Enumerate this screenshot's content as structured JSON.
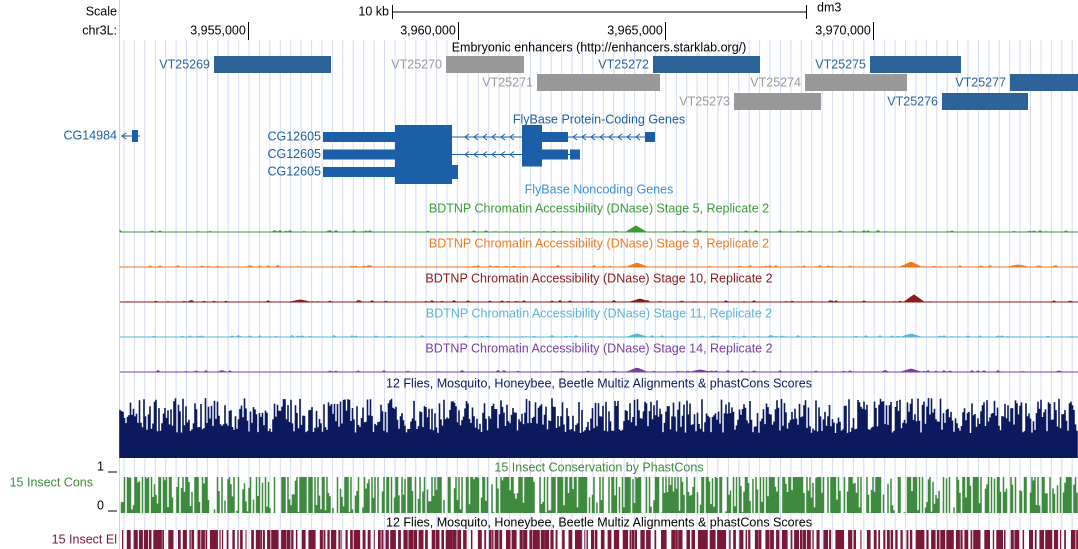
{
  "header": {
    "scale": "Scale",
    "scale_bar": "10 kb",
    "assembly": "dm3",
    "chrom": "chr3L:",
    "positions": [
      "3,955,000",
      "3,960,000",
      "3,965,000",
      "3,970,000"
    ]
  },
  "enhancers": {
    "title": "Embryonic enhancers (http://enhancers.starklab.org/)",
    "items": [
      {
        "name": "VT25269",
        "color": "#2e6399"
      },
      {
        "name": "VT25270",
        "color": "#999999"
      },
      {
        "name": "VT25272",
        "color": "#2e6399"
      },
      {
        "name": "VT25275",
        "color": "#2e6399"
      },
      {
        "name": "VT25271",
        "color": "#999999"
      },
      {
        "name": "VT25274",
        "color": "#999999"
      },
      {
        "name": "VT25277",
        "color": "#2e6399"
      },
      {
        "name": "VT25273",
        "color": "#999999"
      },
      {
        "name": "VT25276",
        "color": "#2e6399"
      }
    ]
  },
  "genes": {
    "title": "FlyBase Protein-Coding Genes",
    "items": [
      "CG14984",
      "CG12605",
      "CG12605",
      "CG12605"
    ]
  },
  "noncoding": {
    "title": "FlyBase Noncoding Genes"
  },
  "dnase": [
    {
      "title": "BDTNP Chromatin Accessibility (DNase) Stage 5, Replicate 2",
      "color": "#3a9b3a"
    },
    {
      "title": "BDTNP Chromatin Accessibility (DNase) Stage 9, Replicate 2",
      "color": "#f07a20"
    },
    {
      "title": "BDTNP Chromatin Accessibility (DNase) Stage 10, Replicate 2",
      "color": "#8b1a1a"
    },
    {
      "title": "BDTNP Chromatin Accessibility (DNase) Stage 11, Replicate 2",
      "color": "#5ab4d6"
    },
    {
      "title": "BDTNP Chromatin Accessibility (DNase) Stage 14, Replicate 2",
      "color": "#7a3fa0"
    }
  ],
  "multiz": {
    "title": "12 Flies, Mosquito, Honeybee, Beetle Multiz Alignments & phastCons Scores"
  },
  "phastcons": {
    "title": "15 Insect Conservation by PhastCons",
    "label": "15 Insect Cons",
    "max": "1",
    "min": "0"
  },
  "elements": {
    "title": "12 Flies, Mosquito, Honeybee, Beetle Multiz Alignments & phastCons Scores",
    "label": "15 Insect El"
  }
}
